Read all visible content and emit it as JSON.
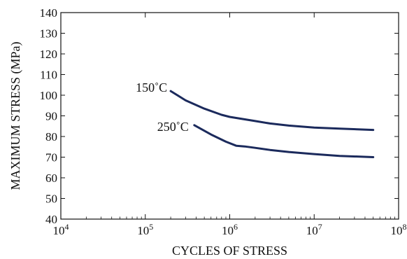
{
  "chart_data": {
    "type": "line",
    "title": "",
    "xlabel": "CYCLES OF STRESS",
    "ylabel": "MAXIMUM STRESS (MPa)",
    "x_scale": "log",
    "xlim": [
      10000,
      100000000
    ],
    "ylim": [
      40,
      140
    ],
    "x_ticks": [
      {
        "value": 10000,
        "base": "10",
        "exp": "4"
      },
      {
        "value": 100000,
        "base": "10",
        "exp": "5"
      },
      {
        "value": 1000000,
        "base": "10",
        "exp": "6"
      },
      {
        "value": 10000000,
        "base": "10",
        "exp": "7"
      },
      {
        "value": 100000000,
        "base": "10",
        "exp": "8"
      }
    ],
    "y_ticks": [
      40,
      50,
      60,
      70,
      80,
      90,
      100,
      110,
      120,
      130,
      140
    ],
    "grid": false,
    "line_color": "#1b2a5c",
    "series": [
      {
        "name": "150˚C",
        "x": [
          200000,
          300000,
          500000,
          800000,
          1000000,
          2000000,
          3000000,
          5000000,
          10000000,
          20000000,
          50000000
        ],
        "y": [
          102,
          97.5,
          93.5,
          90.5,
          89.5,
          87.5,
          86.3,
          85.3,
          84.3,
          83.8,
          83.2
        ]
      },
      {
        "name": "250˚C",
        "x": [
          380000,
          600000,
          900000,
          1200000,
          1500000,
          2000000,
          3000000,
          5000000,
          10000000,
          20000000,
          50000000
        ],
        "y": [
          85.5,
          81,
          77.5,
          75.5,
          75.2,
          74.5,
          73.5,
          72.5,
          71.5,
          70.6,
          70
        ]
      }
    ]
  }
}
